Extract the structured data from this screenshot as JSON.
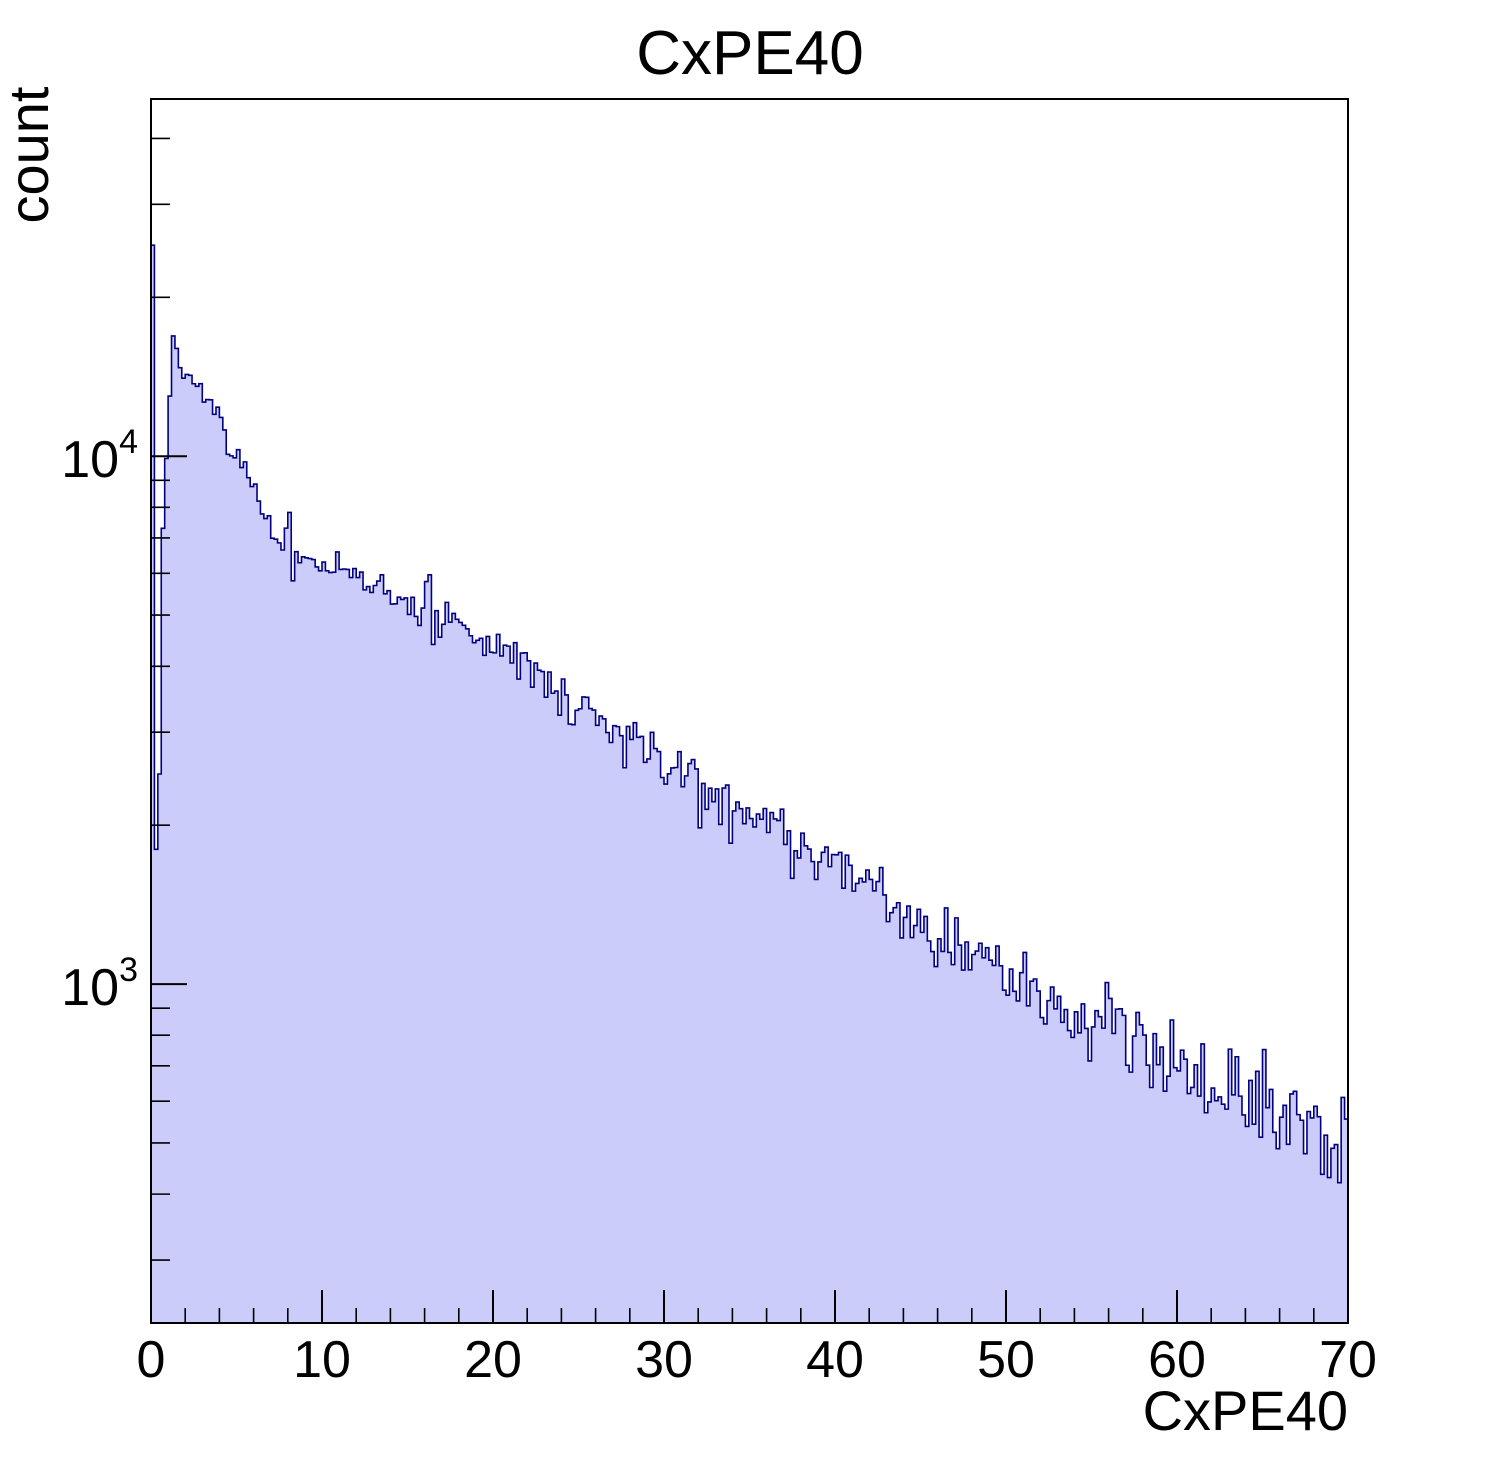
{
  "page": {
    "background": "#ffffff"
  },
  "chart_data": {
    "type": "histogram",
    "title": "CxPE40",
    "xlabel": "CxPE40",
    "ylabel": "count",
    "x_min": 0,
    "x_max": 70,
    "bin_width": 0.2,
    "y_scale": "log",
    "y_min": 228,
    "y_max": 47500,
    "x_major_ticks": [
      {
        "value": 0,
        "label": "0"
      },
      {
        "value": 10,
        "label": "10"
      },
      {
        "value": 20,
        "label": "20"
      },
      {
        "value": 30,
        "label": "30"
      },
      {
        "value": 40,
        "label": "40"
      },
      {
        "value": 50,
        "label": "50"
      },
      {
        "value": 60,
        "label": "60"
      },
      {
        "value": 70,
        "label": "70"
      }
    ],
    "x_minor_step": 2,
    "y_major_ticks": [
      {
        "value": 1000,
        "base": "10",
        "exp": "3"
      },
      {
        "value": 10000,
        "base": "10",
        "exp": "4"
      }
    ],
    "y_minor_ticks": [
      300,
      400,
      500,
      600,
      700,
      800,
      900,
      2000,
      3000,
      4000,
      5000,
      6000,
      7000,
      8000,
      9000,
      20000,
      30000,
      40000
    ],
    "colors": {
      "fill": "#ccccfb",
      "line": "#000080",
      "frame": "#000000",
      "text": "#000000"
    },
    "noise": {
      "seed": 7,
      "k": 2.6,
      "x_start": 1.6
    },
    "envelope": [
      [
        0.1,
        25100
      ],
      [
        0.3,
        1800
      ],
      [
        0.5,
        2500
      ],
      [
        0.7,
        7300
      ],
      [
        0.9,
        9900
      ],
      [
        1.1,
        13000
      ],
      [
        1.3,
        16900
      ],
      [
        1.5,
        16000
      ],
      [
        1.7,
        15000
      ],
      [
        1.9,
        14300
      ],
      [
        2.1,
        13600
      ],
      [
        2.3,
        13800
      ],
      [
        2.6,
        13100
      ],
      [
        2.9,
        13400
      ],
      [
        3.2,
        12700
      ],
      [
        3.5,
        12300
      ],
      [
        3.8,
        12000
      ],
      [
        4.1,
        11600
      ],
      [
        4.4,
        10800
      ],
      [
        4.7,
        10300
      ],
      [
        5.0,
        10000
      ],
      [
        5.3,
        9700
      ],
      [
        5.7,
        9000
      ],
      [
        6.1,
        8500
      ],
      [
        6.4,
        7900
      ],
      [
        6.7,
        7600
      ],
      [
        7.0,
        6950
      ],
      [
        7.3,
        6800
      ],
      [
        7.6,
        6730
      ],
      [
        7.9,
        7000
      ],
      [
        8.1,
        7300
      ],
      [
        8.3,
        6100
      ],
      [
        8.6,
        6600
      ],
      [
        9.0,
        6460
      ],
      [
        9.4,
        6400
      ],
      [
        10.0,
        6240
      ],
      [
        10.6,
        6100
      ],
      [
        11.5,
        6060
      ],
      [
        12.1,
        5900
      ],
      [
        12.7,
        5680
      ],
      [
        13.2,
        5570
      ],
      [
        13.8,
        5500
      ],
      [
        14.4,
        5370
      ],
      [
        15.2,
        5280
      ],
      [
        15.8,
        5100
      ],
      [
        16.3,
        5600
      ],
      [
        16.5,
        4440
      ],
      [
        16.8,
        5400
      ],
      [
        17.0,
        4440
      ],
      [
        17.3,
        4820
      ],
      [
        18.3,
        4680
      ],
      [
        19.1,
        4520
      ],
      [
        20.3,
        4330
      ],
      [
        21.0,
        4200
      ],
      [
        21.8,
        4050
      ],
      [
        22.8,
        3880
      ],
      [
        23.4,
        3620
      ],
      [
        24.7,
        3370
      ],
      [
        26.3,
        3170
      ],
      [
        27.5,
        2950
      ],
      [
        28.6,
        2830
      ],
      [
        28.8,
        2620
      ],
      [
        29.2,
        2780
      ],
      [
        30.2,
        2540
      ],
      [
        31.0,
        2480
      ],
      [
        31.9,
        2610
      ],
      [
        32.1,
        2080
      ],
      [
        32.4,
        2500
      ],
      [
        32.6,
        2000
      ],
      [
        33.0,
        2350
      ],
      [
        33.2,
        1960
      ],
      [
        33.7,
        2350
      ],
      [
        33.9,
        1900
      ],
      [
        34.3,
        2250
      ],
      [
        35.5,
        2070
      ],
      [
        36.4,
        1990
      ],
      [
        37.4,
        1880
      ],
      [
        38.5,
        1830
      ],
      [
        40.0,
        1740
      ],
      [
        42.0,
        1570
      ],
      [
        43.3,
        1400
      ],
      [
        45.2,
        1280
      ],
      [
        47.2,
        1200
      ],
      [
        49.1,
        1100
      ],
      [
        51.1,
        975
      ],
      [
        53.0,
        930
      ],
      [
        55.0,
        880
      ],
      [
        56.9,
        815
      ],
      [
        58.9,
        760
      ],
      [
        60.9,
        695
      ],
      [
        62.8,
        647
      ],
      [
        64.8,
        593
      ],
      [
        66.7,
        537
      ],
      [
        68.7,
        513
      ],
      [
        69.9,
        500
      ]
    ]
  }
}
